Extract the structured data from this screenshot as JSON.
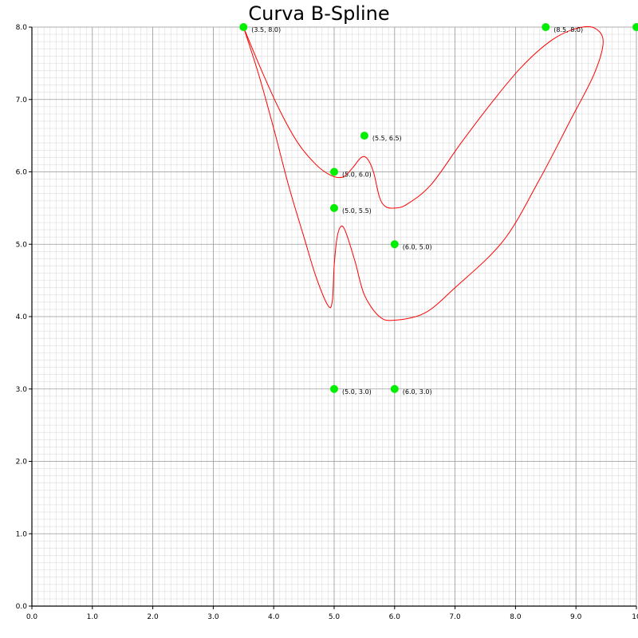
{
  "chart_data": {
    "type": "scatter",
    "title": "Curva B-Spline",
    "xlabel": "",
    "ylabel": "",
    "xlim": [
      0,
      10
    ],
    "ylim": [
      0,
      8
    ],
    "x_ticks": [
      "0.0",
      "1.0",
      "2.0",
      "3.0",
      "4.0",
      "5.0",
      "6.0",
      "7.0",
      "8.0",
      "9.0",
      "10"
    ],
    "y_ticks": [
      "0.0",
      "1.0",
      "2.0",
      "3.0",
      "4.0",
      "5.0",
      "6.0",
      "7.0",
      "8.0"
    ],
    "grid": {
      "major": true,
      "minor": true,
      "minor_divisions": 10
    },
    "control_points": [
      {
        "x": 3.5,
        "y": 8.0,
        "label": "(3.5, 8.0)"
      },
      {
        "x": 8.5,
        "y": 8.0,
        "label": "(8.5, 8.0)"
      },
      {
        "x": 10.0,
        "y": 8.0,
        "label": ""
      },
      {
        "x": 5.5,
        "y": 6.5,
        "label": "(5.5, 6.5)"
      },
      {
        "x": 5.0,
        "y": 6.0,
        "label": "(5.0, 6.0)"
      },
      {
        "x": 5.0,
        "y": 5.5,
        "label": "(5.0, 5.5)"
      },
      {
        "x": 6.0,
        "y": 5.0,
        "label": "(6.0, 5.0)"
      },
      {
        "x": 5.0,
        "y": 3.0,
        "label": "(5.0, 3.0)"
      },
      {
        "x": 6.0,
        "y": 3.0,
        "label": "(6.0, 3.0)"
      }
    ],
    "curve": {
      "color": "#ff0000",
      "points": [
        [
          3.5,
          8.0
        ],
        [
          3.8,
          7.4
        ],
        [
          4.1,
          6.85
        ],
        [
          4.4,
          6.4
        ],
        [
          4.7,
          6.1
        ],
        [
          4.95,
          5.95
        ],
        [
          5.15,
          5.93
        ],
        [
          5.3,
          6.05
        ],
        [
          5.45,
          6.2
        ],
        [
          5.55,
          6.18
        ],
        [
          5.65,
          6.0
        ],
        [
          5.75,
          5.65
        ],
        [
          5.85,
          5.52
        ],
        [
          6.0,
          5.5
        ],
        [
          6.2,
          5.55
        ],
        [
          6.6,
          5.82
        ],
        [
          7.1,
          6.4
        ],
        [
          7.6,
          6.95
        ],
        [
          8.1,
          7.45
        ],
        [
          8.6,
          7.82
        ],
        [
          9.0,
          7.98
        ],
        [
          9.3,
          7.99
        ],
        [
          9.45,
          7.8
        ],
        [
          9.3,
          7.35
        ],
        [
          8.9,
          6.7
        ],
        [
          8.4,
          5.9
        ],
        [
          7.8,
          5.05
        ],
        [
          7.0,
          4.4
        ],
        [
          6.5,
          4.05
        ],
        [
          6.0,
          3.95
        ],
        [
          5.75,
          4.0
        ],
        [
          5.5,
          4.3
        ],
        [
          5.35,
          4.75
        ],
        [
          5.2,
          5.15
        ],
        [
          5.12,
          5.25
        ],
        [
          5.05,
          5.1
        ],
        [
          5.0,
          4.7
        ],
        [
          4.97,
          4.22
        ],
        [
          4.9,
          4.15
        ],
        [
          4.7,
          4.55
        ],
        [
          4.5,
          5.1
        ],
        [
          4.25,
          5.8
        ],
        [
          4.0,
          6.6
        ],
        [
          3.75,
          7.35
        ],
        [
          3.5,
          8.0
        ]
      ]
    },
    "point_color": "#00ee00"
  }
}
